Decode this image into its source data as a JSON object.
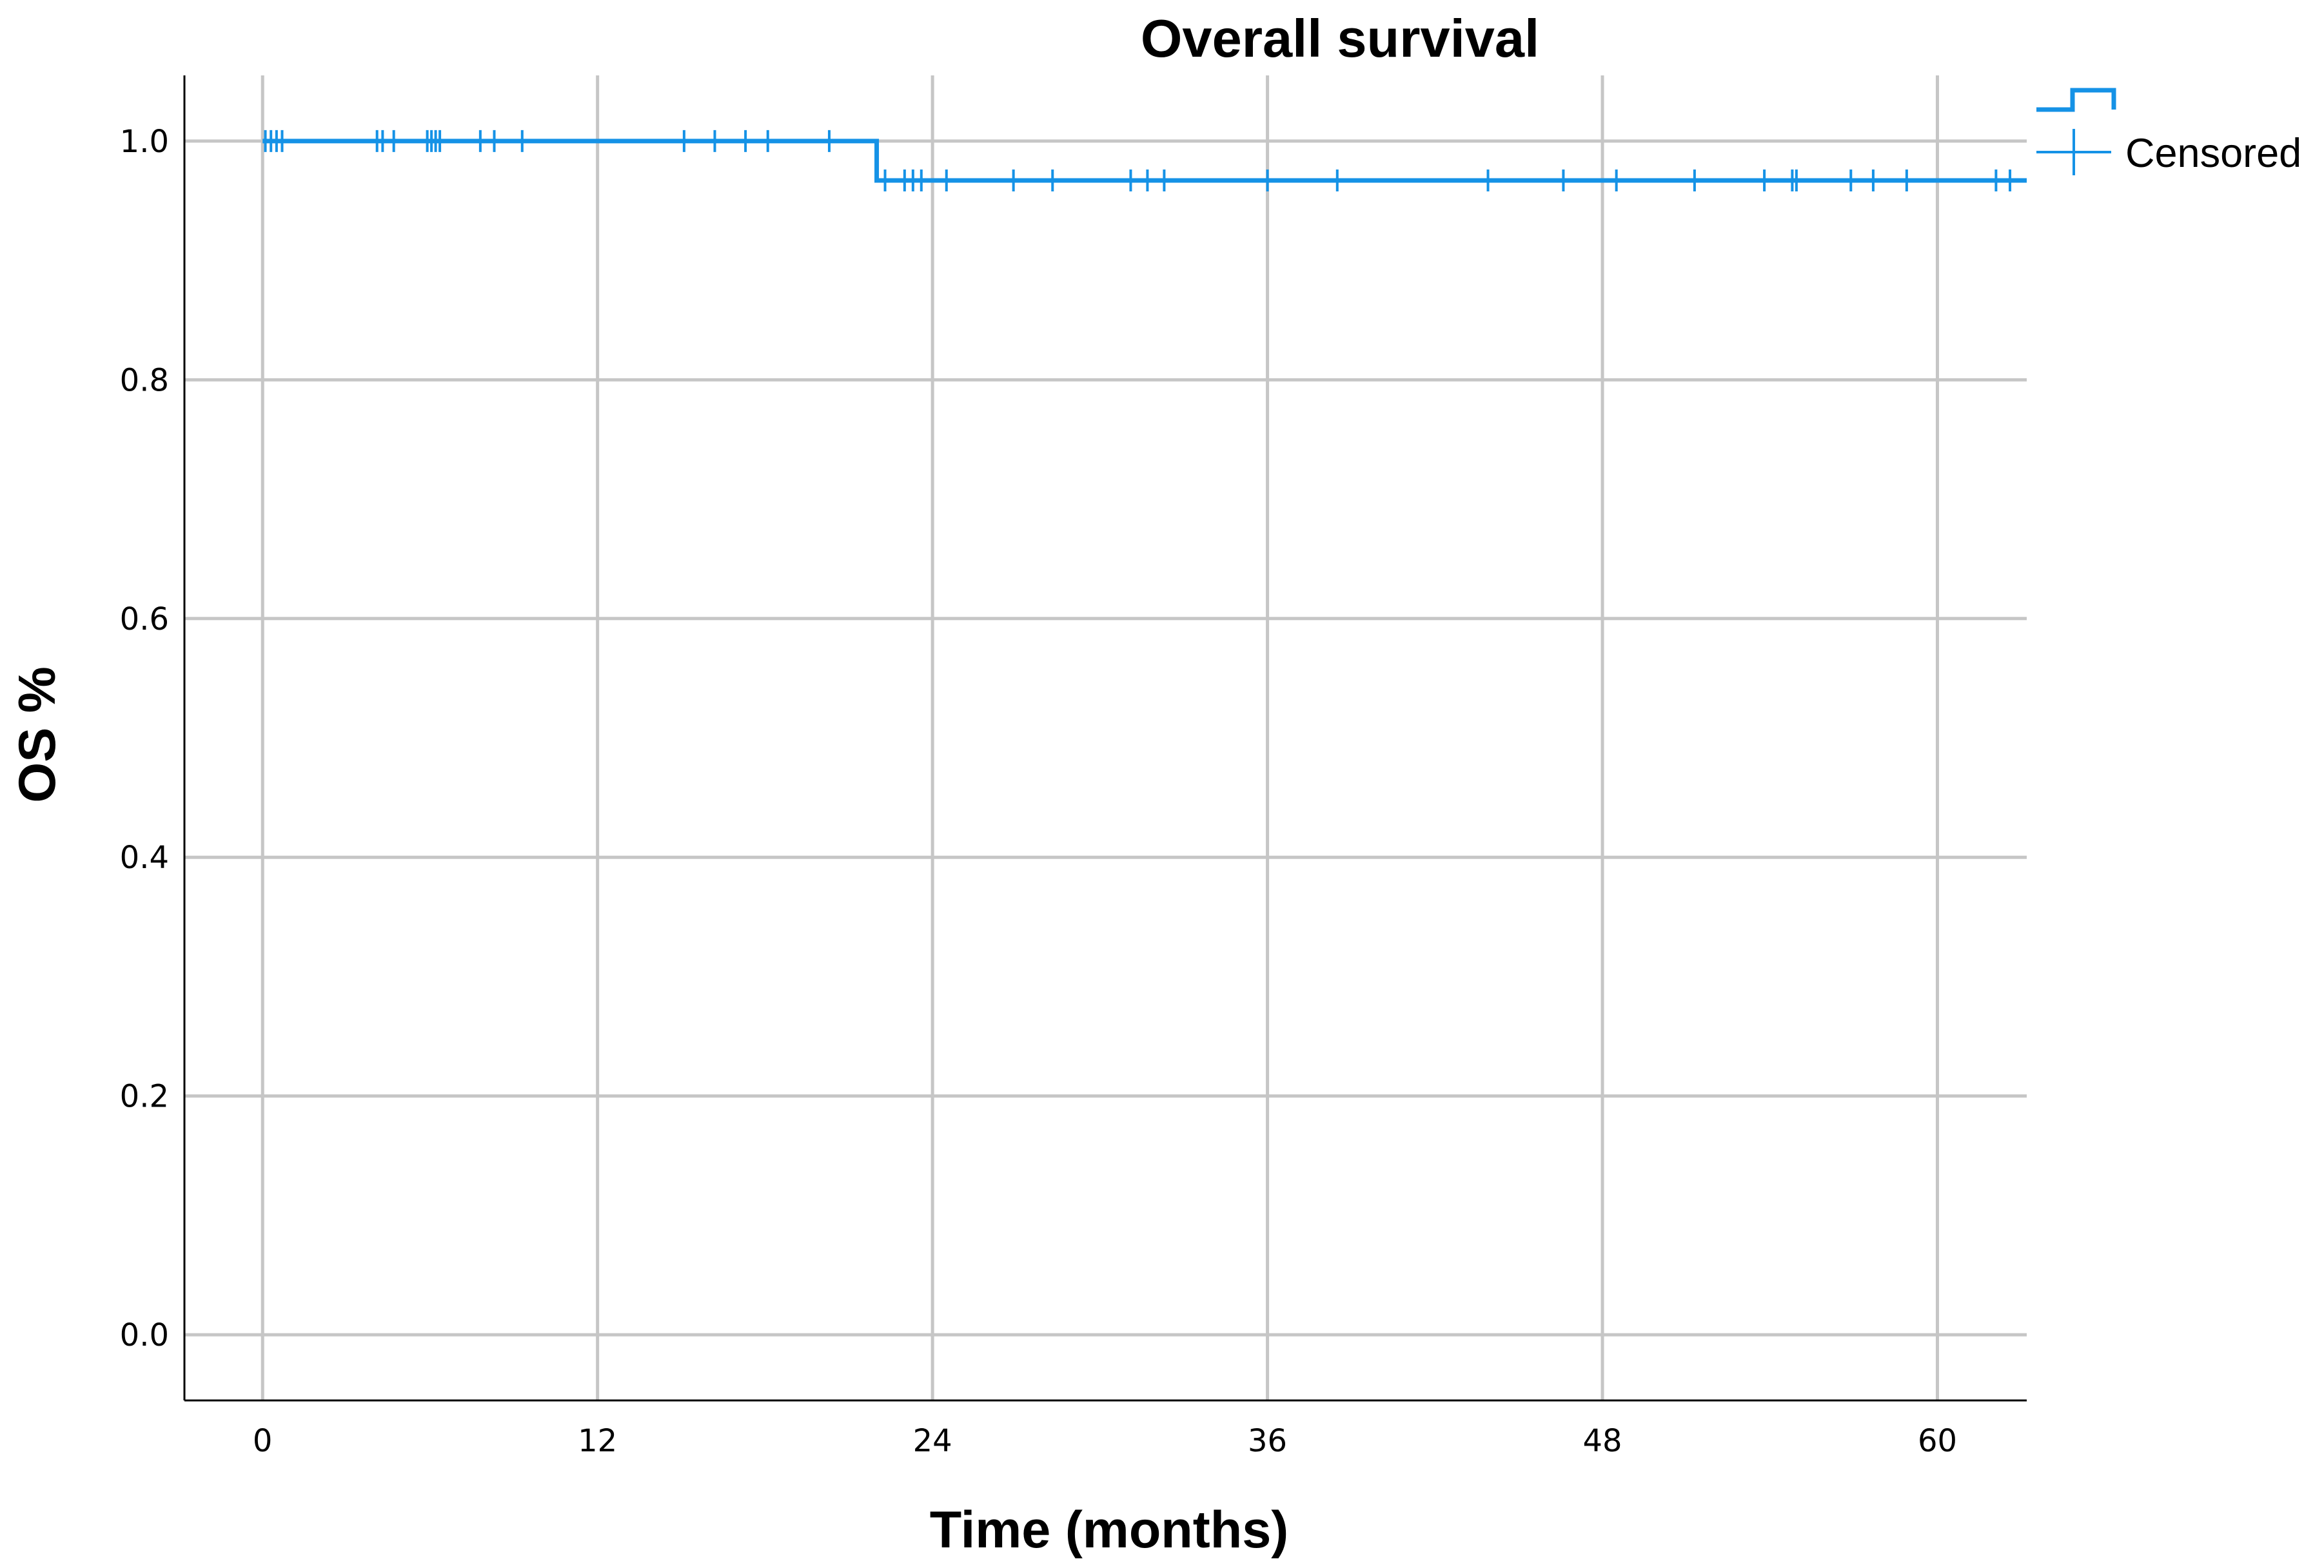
{
  "chart_data": {
    "type": "line",
    "title": "Overall survival",
    "xlabel": "Time (months)",
    "ylabel": "OS %",
    "xlim": [
      -2.8,
      63.2
    ],
    "ylim": [
      -0.055,
      1.055
    ],
    "x_ticks": [
      0,
      12,
      24,
      36,
      48,
      60
    ],
    "y_ticks": [
      0.0,
      0.2,
      0.4,
      0.6,
      0.8,
      1.0
    ],
    "x_tick_labels": [
      "0",
      "12",
      "24",
      "36",
      "48",
      "60"
    ],
    "y_tick_labels": [
      "0.0",
      "0.2",
      "0.4",
      "0.6",
      "0.8",
      "1.0"
    ],
    "grid": true,
    "legend_position": "top-right",
    "legend": [
      {
        "label": "",
        "marker": "step-line"
      },
      {
        "label": "Censored",
        "marker": "plus"
      }
    ],
    "colors": {
      "series": "#1592e6"
    },
    "series": [
      {
        "step_points": [
          {
            "x": 0,
            "y": 1.0
          },
          {
            "x": 22.0,
            "y": 1.0
          },
          {
            "x": 22.0,
            "y": 0.967
          },
          {
            "x": 63.2,
            "y": 0.967
          }
        ],
        "censored": [
          {
            "x": 0.1,
            "y": 1.0
          },
          {
            "x": 0.3,
            "y": 1.0
          },
          {
            "x": 0.5,
            "y": 1.0
          },
          {
            "x": 0.7,
            "y": 1.0
          },
          {
            "x": 4.1,
            "y": 1.0
          },
          {
            "x": 4.3,
            "y": 1.0
          },
          {
            "x": 4.7,
            "y": 1.0
          },
          {
            "x": 5.9,
            "y": 1.0
          },
          {
            "x": 6.05,
            "y": 1.0
          },
          {
            "x": 6.2,
            "y": 1.0
          },
          {
            "x": 6.35,
            "y": 1.0
          },
          {
            "x": 7.8,
            "y": 1.0
          },
          {
            "x": 8.3,
            "y": 1.0
          },
          {
            "x": 9.3,
            "y": 1.0
          },
          {
            "x": 15.1,
            "y": 1.0
          },
          {
            "x": 16.2,
            "y": 1.0
          },
          {
            "x": 17.3,
            "y": 1.0
          },
          {
            "x": 18.1,
            "y": 1.0
          },
          {
            "x": 20.3,
            "y": 1.0
          },
          {
            "x": 22.3,
            "y": 0.967
          },
          {
            "x": 23.0,
            "y": 0.967
          },
          {
            "x": 23.3,
            "y": 0.967
          },
          {
            "x": 23.6,
            "y": 0.967
          },
          {
            "x": 24.5,
            "y": 0.967
          },
          {
            "x": 26.9,
            "y": 0.967
          },
          {
            "x": 28.3,
            "y": 0.967
          },
          {
            "x": 31.1,
            "y": 0.967
          },
          {
            "x": 31.7,
            "y": 0.967
          },
          {
            "x": 32.3,
            "y": 0.967
          },
          {
            "x": 36.0,
            "y": 0.967
          },
          {
            "x": 38.5,
            "y": 0.967
          },
          {
            "x": 43.9,
            "y": 0.967
          },
          {
            "x": 46.6,
            "y": 0.967
          },
          {
            "x": 48.5,
            "y": 0.967
          },
          {
            "x": 51.3,
            "y": 0.967
          },
          {
            "x": 53.8,
            "y": 0.967
          },
          {
            "x": 54.8,
            "y": 0.967
          },
          {
            "x": 54.95,
            "y": 0.967
          },
          {
            "x": 56.9,
            "y": 0.967
          },
          {
            "x": 57.7,
            "y": 0.967
          },
          {
            "x": 58.9,
            "y": 0.967
          },
          {
            "x": 62.1,
            "y": 0.967
          },
          {
            "x": 62.6,
            "y": 0.967
          }
        ]
      }
    ]
  }
}
